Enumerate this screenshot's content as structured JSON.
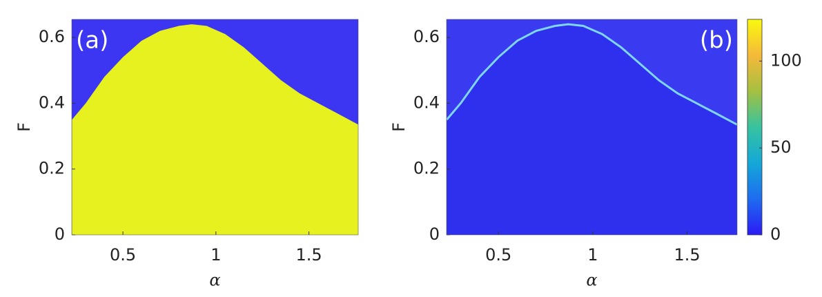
{
  "chart_data": [
    {
      "type": "area",
      "panel_label": "(a)",
      "x_label": "α",
      "y_label": "F",
      "background": "#3c35f2",
      "color": "#e6f11f",
      "panel_label_color": "#ffffff",
      "x": [
        0.226,
        0.3,
        0.4,
        0.5,
        0.6,
        0.7,
        0.8,
        0.87,
        0.95,
        1.05,
        1.15,
        1.25,
        1.35,
        1.45,
        1.55,
        1.65,
        1.765
      ],
      "values": [
        0.35,
        0.4,
        0.48,
        0.54,
        0.59,
        0.62,
        0.635,
        0.64,
        0.635,
        0.61,
        0.57,
        0.52,
        0.47,
        0.43,
        0.4,
        0.37,
        0.335
      ],
      "xlim": [
        0.225,
        1.765
      ],
      "ylim": [
        0,
        0.655
      ],
      "xticks": [
        0.5,
        1,
        1.5
      ],
      "yticks": [
        0,
        0.2,
        0.4,
        0.6
      ]
    },
    {
      "type": "area",
      "panel_label": "(b)",
      "x_label": "α",
      "y_label": "F",
      "background": "#3a3af0",
      "color": "#2f2fee",
      "line_color": "#7fd6f2",
      "panel_label_color": "#ffffff",
      "x": [
        0.226,
        0.3,
        0.4,
        0.5,
        0.6,
        0.7,
        0.8,
        0.87,
        0.95,
        1.05,
        1.15,
        1.25,
        1.35,
        1.45,
        1.55,
        1.65,
        1.765
      ],
      "values": [
        0.35,
        0.4,
        0.48,
        0.54,
        0.59,
        0.62,
        0.635,
        0.64,
        0.635,
        0.61,
        0.57,
        0.52,
        0.47,
        0.43,
        0.4,
        0.37,
        0.335
      ],
      "xlim": [
        0.225,
        1.765
      ],
      "ylim": [
        0,
        0.655
      ],
      "xticks": [
        0.5,
        1,
        1.5
      ],
      "yticks": [
        0,
        0.2,
        0.4,
        0.6
      ],
      "colorbar": {
        "clim": [
          0,
          124
        ],
        "ticks": [
          0,
          50,
          100
        ],
        "colors": [
          "#2b1bf5",
          "#1e6cf0",
          "#14a8d8",
          "#36c3a0",
          "#a5c040",
          "#f6b93a",
          "#f9f90e"
        ]
      }
    }
  ]
}
